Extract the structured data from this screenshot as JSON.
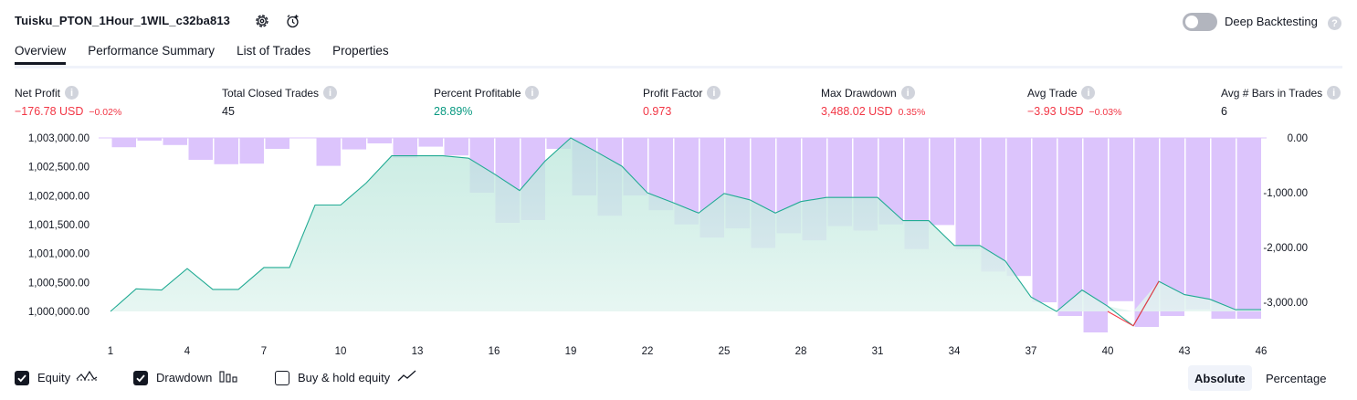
{
  "header": {
    "strategy_name": "Tuisku_PTON_1Hour_1WIL_c32ba813",
    "settings_icon": "gear-icon",
    "alert_icon": "add-alert-icon",
    "deep_backtesting_label": "Deep Backtesting",
    "deep_backtesting_enabled": false,
    "help_icon": "question-icon"
  },
  "tabs": [
    {
      "label": "Overview",
      "active": true
    },
    {
      "label": "Performance Summary",
      "active": false
    },
    {
      "label": "List of Trades",
      "active": false
    },
    {
      "label": "Properties",
      "active": false
    }
  ],
  "metrics": {
    "net_profit": {
      "label": "Net Profit",
      "value": "−176.78 USD",
      "pct": "−0.02%"
    },
    "total_closed_trades": {
      "label": "Total Closed Trades",
      "value": "45"
    },
    "percent_profitable": {
      "label": "Percent Profitable",
      "value": "28.89%"
    },
    "profit_factor": {
      "label": "Profit Factor",
      "value": "0.973"
    },
    "max_drawdown": {
      "label": "Max Drawdown",
      "value": "3,488.02 USD",
      "pct": "0.35%"
    },
    "avg_trade": {
      "label": "Avg Trade",
      "value": "−3.93 USD",
      "pct": "−0.03%"
    },
    "avg_bars": {
      "label": "Avg # Bars in Trades",
      "value": "6"
    }
  },
  "legend": {
    "equity": {
      "label": "Equity",
      "checked": true,
      "icon": "equity-line-icon"
    },
    "drawdown": {
      "label": "Drawdown",
      "checked": true,
      "icon": "drawdown-bars-icon"
    },
    "buy_hold": {
      "label": "Buy & hold equity",
      "checked": false,
      "icon": "buy-hold-line-icon"
    }
  },
  "view_modes": [
    {
      "label": "Absolute",
      "active": true
    },
    {
      "label": "Percentage",
      "active": false
    }
  ],
  "colors": {
    "equity_line": "#22ab94",
    "equity_fill": "#cdeee6",
    "equity_below": "#f23645",
    "drawdown_bar": "#dcc4fc",
    "drawdown_bar_overlap": "#b8b8e6",
    "text_red": "#f23645",
    "text_green": "#089981",
    "axis_text": "#131722"
  },
  "chart_data": {
    "type": "area",
    "x_tick_labels": [
      "1",
      "4",
      "7",
      "10",
      "13",
      "16",
      "19",
      "22",
      "25",
      "28",
      "31",
      "34",
      "37",
      "40",
      "43",
      "46"
    ],
    "equity": {
      "name": "Equity",
      "x": [
        1,
        2,
        3,
        4,
        5,
        6,
        7,
        8,
        9,
        10,
        11,
        12,
        13,
        14,
        15,
        16,
        17,
        18,
        19,
        20,
        21,
        22,
        23,
        24,
        25,
        26,
        27,
        28,
        29,
        30,
        31,
        32,
        33,
        34,
        35,
        36,
        37,
        38,
        39,
        40,
        41,
        42,
        43,
        44,
        45,
        46
      ],
      "values": [
        1000000,
        1000390,
        1000370,
        1000740,
        1000380,
        1000380,
        1000760,
        1000760,
        1001840,
        1001840,
        1002220,
        1002690,
        1002690,
        1002690,
        1002650,
        1002380,
        1002090,
        1002600,
        1003000,
        1002760,
        1002510,
        1002050,
        1001880,
        1001700,
        1002040,
        1001930,
        1001700,
        1001900,
        1001970,
        1001970,
        1001970,
        1001570,
        1001570,
        1001140,
        1001140,
        1000870,
        1000250,
        1000000,
        1000370,
        1000090,
        999750,
        1000520,
        1000290,
        1000210,
        1000030,
        1000030
      ],
      "y_axis_labels": [
        "1,003,000.00",
        "1,002,500.00",
        "1,002,000.00",
        "1,001,500.00",
        "1,001,000.00",
        "1,000,500.00",
        "1,000,000.00"
      ],
      "ylim": [
        999700,
        1003000
      ]
    },
    "drawdown": {
      "name": "Drawdown",
      "x": [
        2,
        3,
        4,
        5,
        6,
        7,
        8,
        9,
        10,
        11,
        12,
        13,
        14,
        15,
        16,
        17,
        18,
        19,
        20,
        21,
        22,
        23,
        24,
        25,
        26,
        27,
        28,
        29,
        30,
        31,
        32,
        33,
        34,
        35,
        36,
        37,
        38,
        39,
        40,
        41,
        42,
        43,
        44,
        45,
        46
      ],
      "values": [
        -170,
        -50,
        -130,
        -400,
        -480,
        -470,
        -200,
        0,
        -510,
        -210,
        -100,
        -360,
        -160,
        -320,
        -1000,
        -1550,
        -1500,
        -200,
        -1050,
        -1420,
        -1050,
        -1320,
        -1580,
        -1820,
        -1650,
        -2010,
        -1740,
        -1870,
        -1610,
        -1690,
        -1580,
        -2030,
        -1590,
        -2030,
        -2440,
        -2520,
        -3000,
        -3250,
        -3550,
        -2980,
        -3450,
        -3250,
        -3130,
        -3300,
        -3300
      ],
      "y_axis_labels": [
        "0.00",
        "-1,000.00",
        "-2,000.00",
        "-3,000.00"
      ],
      "ylim": [
        -3500,
        0
      ]
    }
  }
}
